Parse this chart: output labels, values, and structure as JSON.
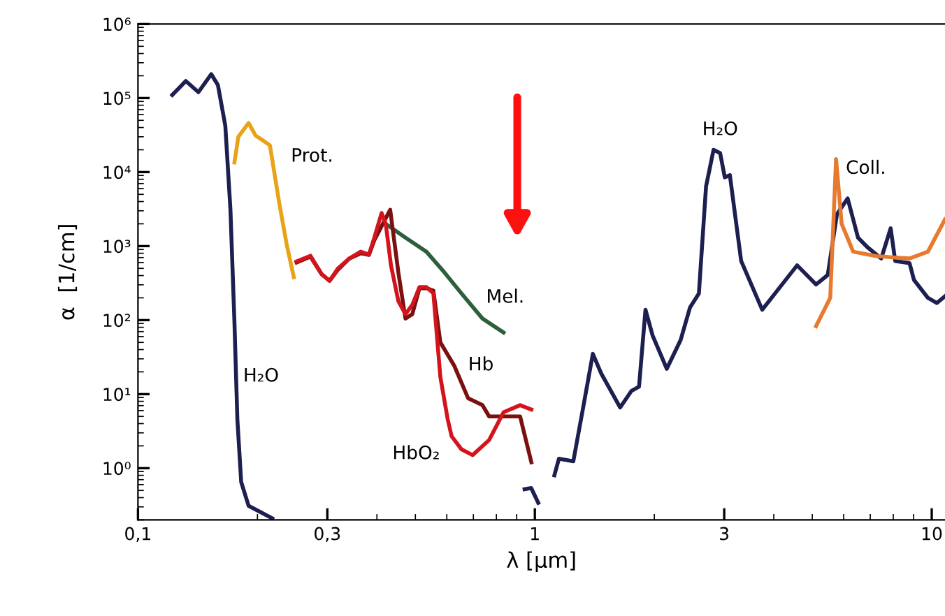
{
  "chart_data": {
    "type": "line",
    "xlabel": "λ [μm]",
    "ylabel": "α  [1/cm]",
    "log": "xy",
    "xlim": [
      0.1,
      10.8
    ],
    "ylim": [
      0.2,
      1000000
    ],
    "xticks": [
      {
        "value": 0.1,
        "label": "0,1"
      },
      {
        "value": 0.3,
        "label": "0,3"
      },
      1,
      3,
      10
    ],
    "yticks": [
      {
        "value": 1,
        "label": "10⁰"
      },
      {
        "value": 10,
        "label": "10¹"
      },
      {
        "value": 100,
        "label": "10²"
      },
      {
        "value": 1000,
        "label": "10³"
      },
      {
        "value": 10000,
        "label": "10⁴"
      },
      {
        "value": 100000,
        "label": "10⁵"
      },
      {
        "value": 1000000,
        "label": "10⁶"
      }
    ],
    "grid": false,
    "marker": "none",
    "line_style": "solid",
    "series": [
      {
        "name": "H₂O",
        "color": "#1c1f4f",
        "x": [
          0.122,
          0.132,
          0.142,
          0.153,
          0.159,
          0.166,
          0.171,
          0.175,
          0.178,
          0.182,
          0.19,
          0.218
        ],
        "values": [
          110000,
          170000,
          120000,
          210000,
          150000,
          42000,
          3100,
          95,
          4.6,
          0.65,
          0.31,
          0.21
        ]
      },
      {
        "name": "Prot.",
        "color": "#e8a317",
        "x": [
          0.175,
          0.179,
          0.19,
          0.198,
          0.206,
          0.215,
          0.227,
          0.237,
          0.247
        ],
        "values": [
          13500,
          30000,
          46000,
          31000,
          27000,
          23000,
          3800,
          1050,
          380
        ]
      },
      {
        "name": "Mel.",
        "color": "#2e5e3a",
        "x": [
          0.421,
          0.472,
          0.533,
          0.592,
          0.653,
          0.738,
          0.834
        ],
        "values": [
          2000,
          1300,
          840,
          440,
          230,
          105,
          68
        ]
      },
      {
        "name": "Hb",
        "color": "#7a1010",
        "x": [
          0.251,
          0.272,
          0.29,
          0.304,
          0.319,
          0.341,
          0.364,
          0.382,
          0.394,
          0.432,
          0.453,
          0.472,
          0.491,
          0.512,
          0.533,
          0.555,
          0.578,
          0.627,
          0.679,
          0.738,
          0.767,
          0.834,
          0.918,
          0.98
        ],
        "values": [
          600,
          720,
          420,
          340,
          480,
          680,
          800,
          760,
          1200,
          3100,
          440,
          105,
          120,
          270,
          270,
          250,
          50,
          24,
          8.8,
          7.1,
          5,
          5,
          5,
          1.2
        ]
      },
      {
        "name": "HbO₂",
        "color": "#d4141c",
        "x": [
          0.251,
          0.272,
          0.29,
          0.304,
          0.319,
          0.341,
          0.364,
          0.382,
          0.394,
          0.411,
          0.421,
          0.434,
          0.453,
          0.472,
          0.491,
          0.512,
          0.533,
          0.555,
          0.578,
          0.603,
          0.617,
          0.653,
          0.697,
          0.767,
          0.834,
          0.918,
          0.98
        ],
        "values": [
          620,
          740,
          420,
          340,
          500,
          680,
          840,
          770,
          1300,
          2800,
          2000,
          550,
          180,
          120,
          160,
          280,
          280,
          230,
          17,
          4.6,
          2.7,
          1.8,
          1.5,
          2.4,
          5.7,
          7.1,
          6.2
        ]
      },
      {
        "name": "H₂O",
        "color": "#1c1f4f",
        "x": [
          0.942,
          0.979,
          1.02,
          1.05,
          1.09,
          1.12,
          1.15,
          1.25,
          1.32,
          1.4,
          1.47,
          1.64,
          1.75,
          1.83,
          1.9,
          1.98,
          2.15,
          2.33,
          2.46,
          2.59,
          2.7,
          2.82,
          2.93,
          3.01,
          3.1,
          3.31,
          3.74,
          4.11,
          4.58,
          5.11,
          5.47,
          5.77,
          6.14,
          6.52,
          6.88,
          7.46,
          7.88,
          8.09,
          8.79,
          9.02,
          9.78,
          10.3,
          10.8
        ],
        "values": [
          0.52,
          0.54,
          0.34,
          null,
          null,
          0.8,
          1.34,
          1.24,
          6.1,
          35,
          19,
          6.6,
          11,
          12.6,
          138,
          62,
          22,
          54,
          148,
          229,
          6400,
          20000,
          18000,
          8500,
          9100,
          630,
          138,
          263,
          550,
          303,
          407,
          2700,
          4400,
          1300,
          970,
          680,
          1740,
          630,
          590,
          350,
          200,
          170,
          210
        ]
      },
      {
        "name": "Coll.",
        "color": "#e87a30",
        "x": [
          5.11,
          5.55,
          5.74,
          5.93,
          6.34,
          7.26,
          8.79,
          9.78,
          10.8
        ],
        "values": [
          83,
          200,
          15000,
          2000,
          840,
          730,
          680,
          840,
          2300
        ]
      }
    ]
  }
}
